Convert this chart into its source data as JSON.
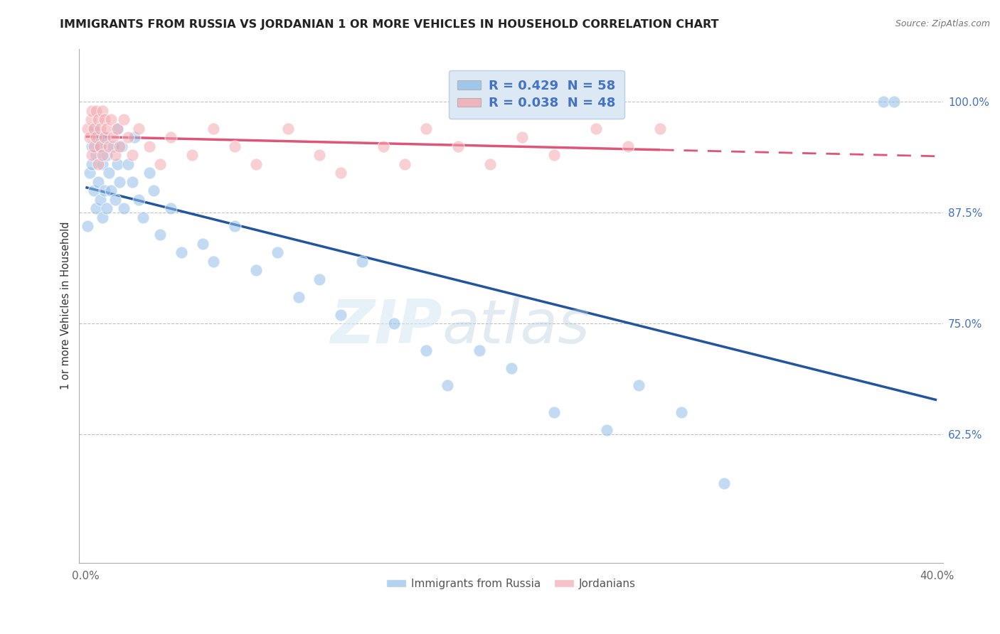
{
  "title": "IMMIGRANTS FROM RUSSIA VS JORDANIAN 1 OR MORE VEHICLES IN HOUSEHOLD CORRELATION CHART",
  "source": "Source: ZipAtlas.com",
  "ylabel": "1 or more Vehicles in Household",
  "legend_russia": "Immigrants from Russia",
  "legend_jordan": "Jordanians",
  "R_russia": 0.429,
  "N_russia": 58,
  "R_jordan": 0.038,
  "N_jordan": 48,
  "yticks": [
    62.5,
    75.0,
    87.5,
    100.0
  ],
  "ytick_labels": [
    "62.5%",
    "75.0%",
    "87.5%",
    "100.0%"
  ],
  "xlim": [
    0.0,
    40.0
  ],
  "ylim": [
    48.0,
    106.0
  ],
  "russia_color": "#92bfe8",
  "jordan_color": "#f4a8b0",
  "russia_line_color": "#2255a0",
  "jordan_line_color": "#e05577",
  "russia_x": [
    0.1,
    0.2,
    0.3,
    0.3,
    0.4,
    0.4,
    0.5,
    0.5,
    0.6,
    0.6,
    0.7,
    0.7,
    0.8,
    0.8,
    0.9,
    0.9,
    1.0,
    1.0,
    1.1,
    1.2,
    1.3,
    1.4,
    1.5,
    1.5,
    1.6,
    1.7,
    1.8,
    2.0,
    2.2,
    2.3,
    2.5,
    2.7,
    3.0,
    3.2,
    3.5,
    4.0,
    4.5,
    5.5,
    6.0,
    7.0,
    8.0,
    9.0,
    10.0,
    11.0,
    12.0,
    13.0,
    14.5,
    16.0,
    17.0,
    18.5,
    20.0,
    22.0,
    24.5,
    26.0,
    28.0,
    30.0,
    37.5,
    38.0
  ],
  "russia_y": [
    86.0,
    92.0,
    93.0,
    95.0,
    90.0,
    97.0,
    88.0,
    94.0,
    91.0,
    96.0,
    89.0,
    95.0,
    87.0,
    93.0,
    90.0,
    96.0,
    88.0,
    94.0,
    92.0,
    90.0,
    95.0,
    89.0,
    93.0,
    97.0,
    91.0,
    95.0,
    88.0,
    93.0,
    91.0,
    96.0,
    89.0,
    87.0,
    92.0,
    90.0,
    85.0,
    88.0,
    83.0,
    84.0,
    82.0,
    86.0,
    81.0,
    83.0,
    78.0,
    80.0,
    76.0,
    82.0,
    75.0,
    72.0,
    68.0,
    72.0,
    70.0,
    65.0,
    63.0,
    68.0,
    65.0,
    57.0,
    100.0,
    100.0
  ],
  "jordan_x": [
    0.1,
    0.2,
    0.25,
    0.3,
    0.3,
    0.4,
    0.4,
    0.5,
    0.5,
    0.6,
    0.6,
    0.7,
    0.7,
    0.8,
    0.8,
    0.9,
    0.9,
    1.0,
    1.1,
    1.2,
    1.3,
    1.4,
    1.5,
    1.6,
    1.8,
    2.0,
    2.2,
    2.5,
    3.0,
    3.5,
    4.0,
    5.0,
    6.0,
    7.0,
    8.0,
    9.5,
    11.0,
    12.0,
    14.0,
    15.0,
    16.0,
    17.5,
    19.0,
    20.5,
    22.0,
    24.0,
    25.5,
    27.0
  ],
  "jordan_y": [
    97.0,
    96.0,
    98.0,
    94.0,
    99.0,
    97.0,
    95.0,
    99.0,
    96.0,
    93.0,
    98.0,
    95.0,
    97.0,
    94.0,
    99.0,
    96.0,
    98.0,
    97.0,
    95.0,
    98.0,
    96.0,
    94.0,
    97.0,
    95.0,
    98.0,
    96.0,
    94.0,
    97.0,
    95.0,
    93.0,
    96.0,
    94.0,
    97.0,
    95.0,
    93.0,
    97.0,
    94.0,
    92.0,
    95.0,
    93.0,
    97.0,
    95.0,
    93.0,
    96.0,
    94.0,
    97.0,
    95.0,
    97.0
  ],
  "watermark_zip": "ZIP",
  "watermark_atlas": "atlas",
  "legend_box_color": "#dce9f5",
  "legend_border_color": "#b8cfe8"
}
